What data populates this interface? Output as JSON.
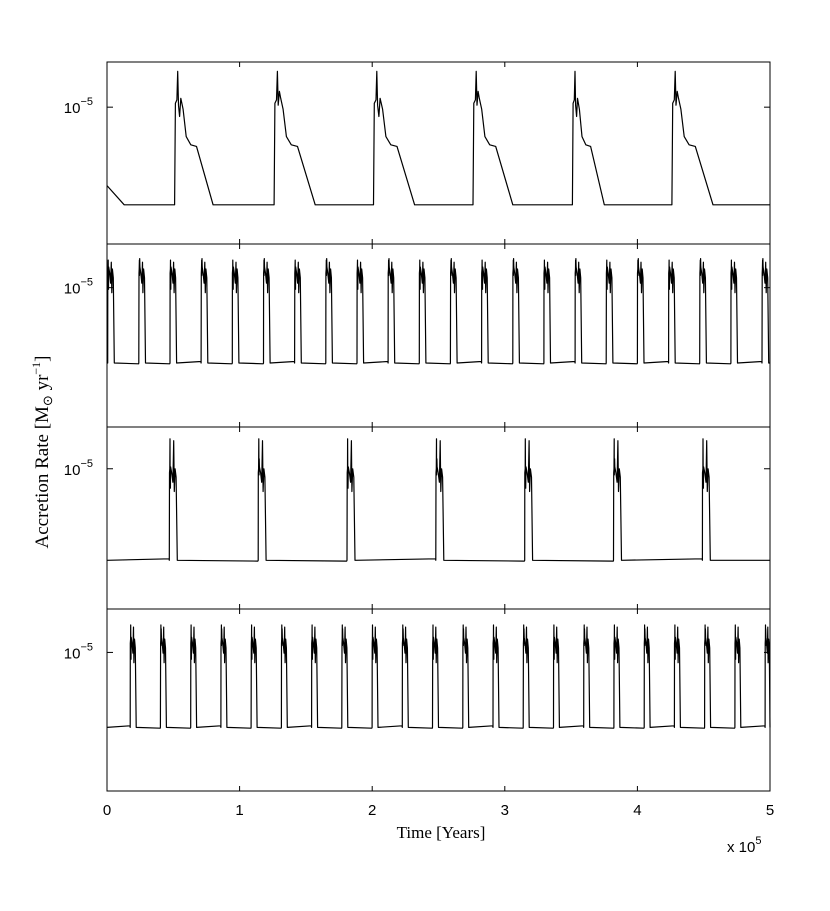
{
  "chart_data": {
    "type": "line",
    "xlabel": "Time [Years]",
    "ylabel_main": "Accretion Rate [M",
    "ylabel_sub": "⊙",
    "ylabel_mid": " yr",
    "ylabel_sup": "−1",
    "ylabel_end": "]",
    "x_multiplier_text": "x 10",
    "x_multiplier_exp": "5",
    "x_ticks": [
      0,
      1,
      2,
      3,
      4,
      5
    ],
    "x_tick_labels": [
      "0",
      "1",
      "2",
      "3",
      "4",
      "5"
    ],
    "xlim": [
      0,
      500000
    ],
    "y_scale": "log",
    "y_tick_base": "10",
    "y_tick_exp": "−5",
    "grid": false,
    "panels": [
      {
        "ylim": [
          1.5e-07,
          4e-05
        ],
        "quiescent": 5e-07,
        "plateau": 3e-06,
        "burst": 1.25e-05,
        "peak": 3e-05,
        "bursts": [
          {
            "start": 51000,
            "end": 80000
          },
          {
            "start": 126000,
            "end": 157000
          },
          {
            "start": 201000,
            "end": 232000
          },
          {
            "start": 276000,
            "end": 306000
          },
          {
            "start": 351000,
            "end": 375000
          },
          {
            "start": 426000,
            "end": 457000
          }
        ],
        "initial_value": 9e-07,
        "initial_end": 13000
      },
      {
        "ylim": [
          3e-07,
          3e-05
        ],
        "quiescent": 1.5e-06,
        "burst": 1.6e-05,
        "peak": 2e-05,
        "period": 23500,
        "first_start": 500,
        "width": 5000
      },
      {
        "ylim": [
          2.5e-07,
          3e-05
        ],
        "quiescent": 9e-07,
        "burst": 1e-05,
        "peak": 2.2e-05,
        "period": 67000,
        "first_start": 47000,
        "width": 6000
      },
      {
        "ylim": [
          3e-07,
          3e-05
        ],
        "quiescent": 1.5e-06,
        "burst": 1.4e-05,
        "peak": 2e-05,
        "period": 22800,
        "first_start": 17500,
        "width": 4500
      }
    ]
  }
}
